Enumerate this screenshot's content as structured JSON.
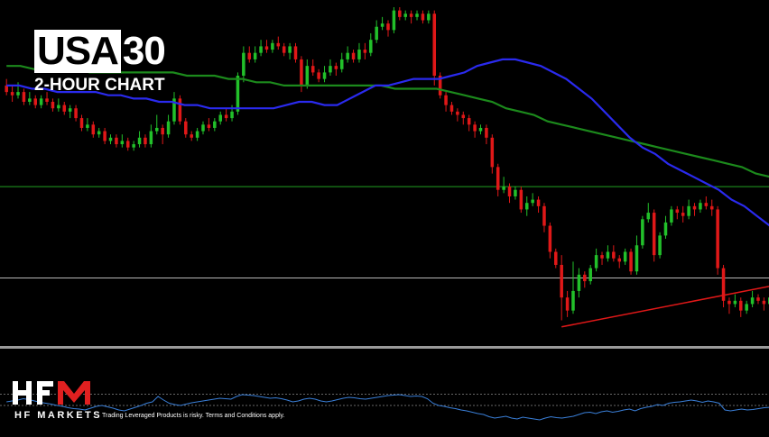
{
  "header": {
    "title_highlight": "USA",
    "title_rest": "30",
    "subtitle": "2-HOUR CHART"
  },
  "branding": {
    "logo_text": "HF MARKETS",
    "disclaimer": "Trading Leveraged Products is risky. Terms and Conditions apply."
  },
  "colors": {
    "background": "#000000",
    "bull": "#22c02a",
    "bear": "#e01818",
    "ma_fast": "#2a2aee",
    "ma_slow": "#1c8a1c",
    "level_upper": "#22a022",
    "level_lower": "#b8b8b8",
    "trendline": "#e01818",
    "oscillator": "#3a7fd8",
    "logo_red": "#e02020"
  },
  "chart_data": [
    {
      "type": "candlestick",
      "timeframe": "2-HOUR",
      "ylim": [
        0,
        100
      ],
      "grid": false,
      "candles": [
        [
          76,
          74,
          78,
          73
        ],
        [
          74,
          73,
          76,
          71
        ],
        [
          73,
          74,
          77,
          72
        ],
        [
          74,
          71,
          75,
          70
        ],
        [
          71,
          72,
          74,
          70
        ],
        [
          72,
          70,
          73,
          69
        ],
        [
          70,
          72,
          73,
          69
        ],
        [
          72,
          71,
          74,
          70
        ],
        [
          71,
          69,
          72,
          68
        ],
        [
          69,
          70,
          72,
          68
        ],
        [
          70,
          68,
          71,
          67
        ],
        [
          68,
          69,
          70,
          66
        ],
        [
          69,
          66,
          70,
          65
        ],
        [
          66,
          63,
          67,
          62
        ],
        [
          63,
          64,
          66,
          62
        ],
        [
          64,
          61,
          65,
          60
        ],
        [
          61,
          62,
          63,
          60
        ],
        [
          62,
          59,
          63,
          58
        ],
        [
          59,
          60,
          61,
          58
        ],
        [
          60,
          58,
          61,
          57
        ],
        [
          58,
          59,
          61,
          57
        ],
        [
          59,
          57,
          60,
          56
        ],
        [
          57,
          58,
          59,
          56
        ],
        [
          58,
          60,
          62,
          57
        ],
        [
          60,
          58,
          61,
          57
        ],
        [
          58,
          62,
          64,
          57
        ],
        [
          62,
          63,
          67,
          61
        ],
        [
          63,
          61,
          64,
          58
        ],
        [
          61,
          65,
          67,
          60
        ],
        [
          65,
          72,
          74,
          64
        ],
        [
          72,
          65,
          73,
          64
        ],
        [
          65,
          61,
          66,
          60
        ],
        [
          61,
          60,
          62,
          59
        ],
        [
          60,
          62,
          63,
          59
        ],
        [
          62,
          64,
          65,
          61
        ],
        [
          64,
          63,
          66,
          62
        ],
        [
          63,
          65,
          66,
          62
        ],
        [
          65,
          67,
          68,
          64
        ],
        [
          67,
          66,
          69,
          65
        ],
        [
          66,
          68,
          70,
          65
        ],
        [
          68,
          79,
          80,
          67
        ],
        [
          79,
          86,
          88,
          77
        ],
        [
          86,
          84,
          88,
          83
        ],
        [
          84,
          86,
          88,
          83
        ],
        [
          86,
          88,
          90,
          85
        ],
        [
          88,
          87,
          90,
          86
        ],
        [
          87,
          89,
          90,
          86
        ],
        [
          89,
          88,
          91,
          87
        ],
        [
          88,
          86,
          89,
          85
        ],
        [
          86,
          88,
          89,
          84
        ],
        [
          88,
          84,
          89,
          83
        ],
        [
          84,
          76,
          85,
          74
        ],
        [
          76,
          82,
          84,
          75
        ],
        [
          82,
          80,
          84,
          79
        ],
        [
          80,
          78,
          81,
          77
        ],
        [
          78,
          80,
          82,
          77
        ],
        [
          80,
          82,
          84,
          79
        ],
        [
          82,
          81,
          83,
          79
        ],
        [
          81,
          84,
          86,
          80
        ],
        [
          84,
          86,
          88,
          83
        ],
        [
          86,
          84,
          87,
          83
        ],
        [
          84,
          87,
          89,
          83
        ],
        [
          87,
          86,
          89,
          84
        ],
        [
          86,
          90,
          92,
          85
        ],
        [
          90,
          94,
          96,
          89
        ],
        [
          94,
          95,
          97,
          93
        ],
        [
          95,
          93,
          96,
          91
        ],
        [
          93,
          99,
          100,
          92
        ],
        [
          99,
          97,
          100,
          96
        ],
        [
          97,
          98,
          99,
          96
        ],
        [
          98,
          97,
          99,
          95
        ],
        [
          97,
          98,
          99,
          96
        ],
        [
          98,
          96,
          99,
          95
        ],
        [
          96,
          98,
          99,
          95
        ],
        [
          98,
          79,
          99,
          76
        ],
        [
          79,
          73,
          80,
          72
        ],
        [
          73,
          70,
          74,
          68
        ],
        [
          70,
          68,
          71,
          67
        ],
        [
          68,
          67,
          69,
          65
        ],
        [
          67,
          66,
          68,
          64
        ],
        [
          66,
          64,
          67,
          62
        ],
        [
          64,
          62,
          65,
          60
        ],
        [
          62,
          63,
          64,
          61
        ],
        [
          63,
          60,
          64,
          58
        ],
        [
          60,
          51,
          61,
          49
        ],
        [
          51,
          44,
          52,
          42
        ],
        [
          44,
          45,
          48,
          43
        ],
        [
          45,
          42,
          46,
          40
        ],
        [
          42,
          44,
          45,
          41
        ],
        [
          44,
          38,
          45,
          37
        ],
        [
          38,
          40,
          42,
          36
        ],
        [
          40,
          41,
          43,
          39
        ],
        [
          41,
          39,
          42,
          37
        ],
        [
          39,
          33,
          40,
          31
        ],
        [
          33,
          25,
          34,
          23
        ],
        [
          25,
          21,
          26,
          20
        ],
        [
          21,
          11,
          24,
          4
        ],
        [
          11,
          7,
          13,
          5
        ],
        [
          7,
          13,
          22,
          6
        ],
        [
          13,
          18,
          20,
          11
        ],
        [
          18,
          16,
          19,
          14
        ],
        [
          16,
          20,
          21,
          15
        ],
        [
          20,
          24,
          26,
          19
        ],
        [
          24,
          23,
          25,
          21
        ],
        [
          23,
          25,
          27,
          22
        ],
        [
          25,
          23,
          27,
          22
        ],
        [
          23,
          22,
          24,
          20
        ],
        [
          22,
          25,
          26,
          21
        ],
        [
          25,
          19,
          26,
          18
        ],
        [
          19,
          27,
          30,
          18
        ],
        [
          27,
          35,
          36,
          26
        ],
        [
          35,
          37,
          40,
          34
        ],
        [
          37,
          24,
          38,
          22
        ],
        [
          24,
          30,
          31,
          23
        ],
        [
          30,
          34,
          36,
          29
        ],
        [
          34,
          38,
          39,
          33
        ],
        [
          38,
          37,
          39,
          35
        ],
        [
          37,
          36,
          39,
          34
        ],
        [
          36,
          39,
          41,
          35
        ],
        [
          39,
          38,
          40,
          36
        ],
        [
          38,
          40,
          41,
          37
        ],
        [
          40,
          39,
          42,
          38
        ],
        [
          39,
          38,
          41,
          36
        ],
        [
          38,
          20,
          39,
          18
        ],
        [
          20,
          10,
          21,
          8
        ],
        [
          10,
          9,
          11,
          6
        ],
        [
          9,
          10,
          12,
          8
        ],
        [
          10,
          7,
          11,
          5
        ],
        [
          7,
          9,
          10,
          6
        ],
        [
          9,
          11,
          13,
          8
        ],
        [
          11,
          10,
          12,
          9
        ],
        [
          10,
          9,
          11,
          7
        ],
        [
          9,
          11,
          12,
          8
        ]
      ],
      "ma_fast": [
        76,
        76,
        75,
        75,
        74,
        74,
        74,
        74,
        73,
        73,
        72,
        72,
        71,
        71,
        70,
        70,
        69,
        69,
        69,
        69,
        69,
        69,
        70,
        71,
        71,
        70,
        70,
        72,
        74,
        76,
        76,
        77,
        78,
        78,
        78,
        79,
        80,
        82,
        83,
        84,
        84,
        83,
        82,
        80,
        78,
        75,
        72,
        68,
        64,
        60,
        57,
        55,
        52,
        50,
        48,
        46,
        44,
        41,
        39,
        36,
        33
      ],
      "ma_slow": [
        82,
        82,
        81,
        81,
        81,
        81,
        80,
        80,
        80,
        80,
        80,
        80,
        80,
        79,
        79,
        79,
        78,
        78,
        77,
        77,
        76,
        76,
        76,
        76,
        76,
        76,
        76,
        76,
        75,
        75,
        75,
        75,
        74,
        73,
        72,
        71,
        69,
        68,
        67,
        65,
        64,
        63,
        62,
        61,
        60,
        59,
        58,
        57,
        56,
        55,
        54,
        53,
        52,
        51,
        49,
        48
      ],
      "levels": {
        "upper": 45,
        "lower": 17
      },
      "trendline": {
        "start": [
          96,
          2
        ],
        "end": [
          140,
          17
        ]
      },
      "oscillator": {
        "ylim": [
          0,
          100
        ],
        "reference_levels": [
          65,
          40
        ],
        "values": [
          48,
          50,
          52,
          55,
          53,
          50,
          47,
          45,
          43,
          40,
          38,
          35,
          33,
          32,
          30,
          34,
          38,
          40,
          37,
          34,
          30,
          28,
          32,
          36,
          40,
          45,
          48,
          60,
          52,
          45,
          42,
          40,
          43,
          46,
          48,
          50,
          52,
          54,
          56,
          55,
          54,
          60,
          64,
          63,
          62,
          60,
          58,
          56,
          57,
          55,
          52,
          48,
          50,
          54,
          56,
          54,
          50,
          48,
          50,
          53,
          56,
          58,
          57,
          55,
          54,
          56,
          58,
          60,
          62,
          63,
          64,
          62,
          60,
          61,
          60,
          55,
          45,
          40,
          38,
          35,
          33,
          30,
          28,
          25,
          22,
          20,
          15,
          12,
          14,
          16,
          12,
          10,
          14,
          12,
          10,
          8,
          12,
          15,
          13,
          12,
          14,
          16,
          20,
          24,
          25,
          22,
          26,
          28,
          25,
          27,
          30,
          32,
          28,
          33,
          36,
          38,
          42,
          40,
          45,
          47,
          48,
          50,
          52,
          50,
          47,
          50,
          48,
          45,
          30,
          28,
          30,
          32,
          30,
          31,
          33,
          35,
          36
        ]
      }
    }
  ]
}
